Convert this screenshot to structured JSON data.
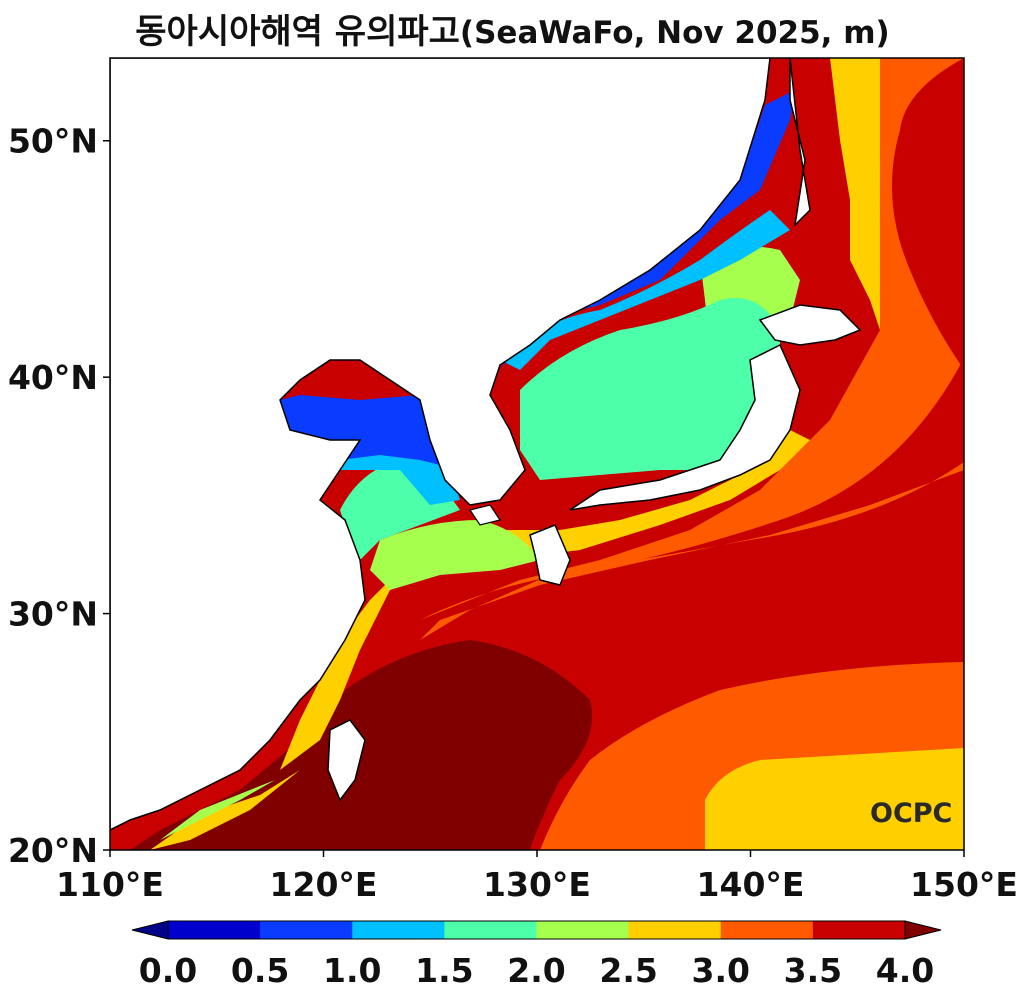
{
  "title": {
    "main": "동아시아해역 유의파고",
    "sub": "(SeaWaFo, Nov 2025, m)"
  },
  "logo": "OCPC",
  "map": {
    "lon_range": [
      110,
      150
    ],
    "lat_range": [
      20,
      53.5
    ],
    "lon_ticks": [
      "110°E",
      "120°E",
      "130°E",
      "140°E",
      "150°E"
    ],
    "lat_ticks": [
      "20°N",
      "30°N",
      "40°N",
      "50°N"
    ]
  },
  "colorbar": {
    "ticks": [
      "0.0",
      "0.5",
      "1.0",
      "1.5",
      "2.0",
      "2.5",
      "3.0",
      "3.5",
      "4.0"
    ],
    "colors": [
      "#0000cd",
      "#0a3cff",
      "#00c0ff",
      "#4dffa8",
      "#a6ff4d",
      "#ffd000",
      "#ff5a00",
      "#c80000"
    ],
    "under_color": "#00008b",
    "over_color": "#800000"
  }
}
